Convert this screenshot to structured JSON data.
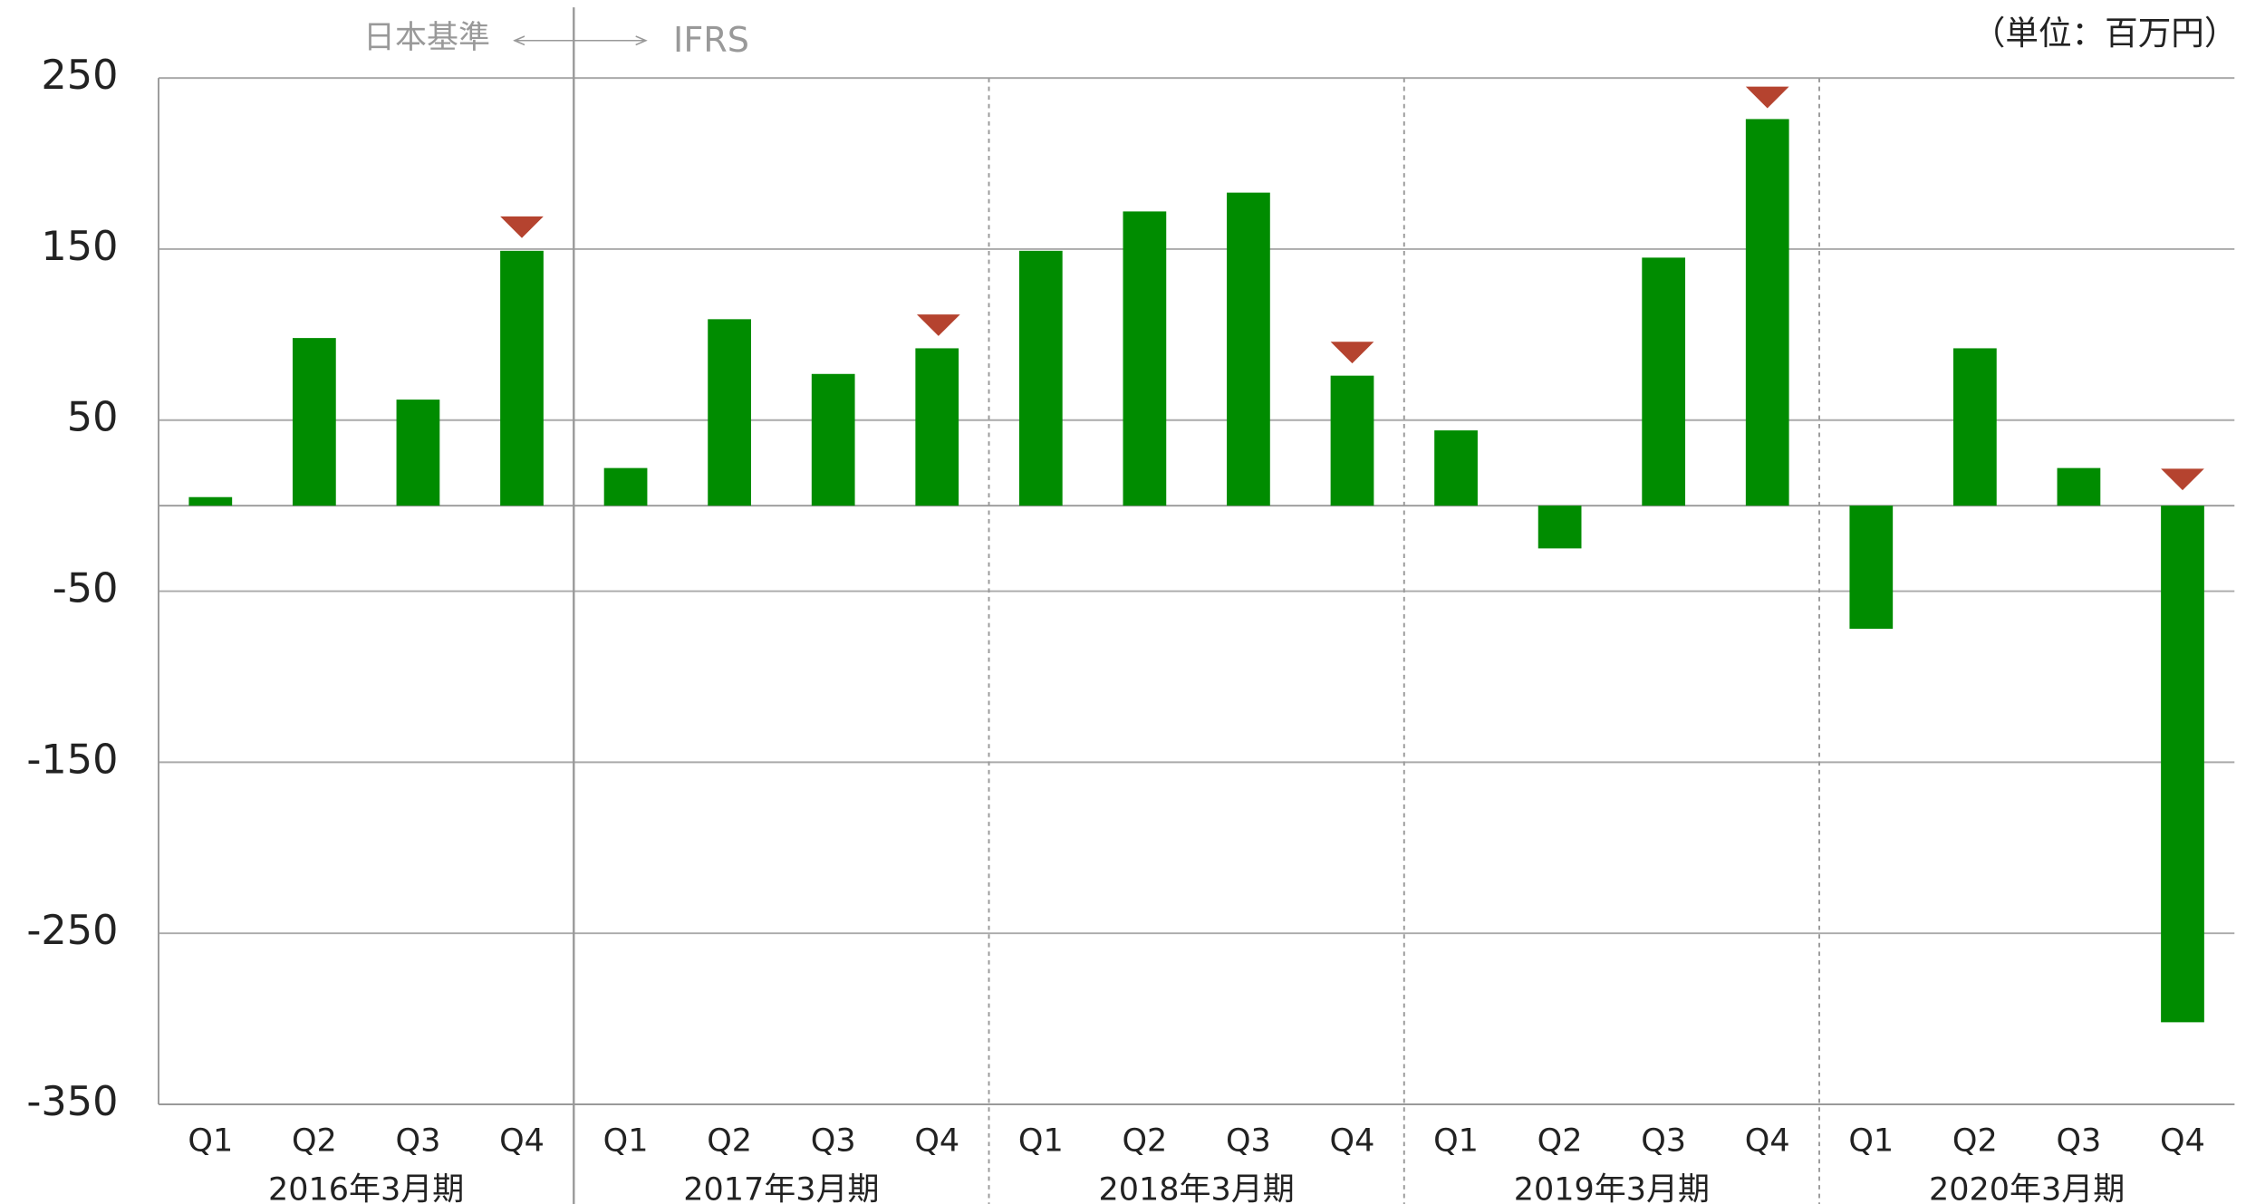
{
  "chart_data": {
    "type": "bar",
    "unit_label": "（単位：百万円）",
    "annotations": [
      "日本基準",
      "IFRS"
    ],
    "categories": [
      "Q1",
      "Q2",
      "Q3",
      "Q4",
      "Q1",
      "Q2",
      "Q3",
      "Q4",
      "Q1",
      "Q2",
      "Q3",
      "Q4",
      "Q1",
      "Q2",
      "Q3",
      "Q4",
      "Q1",
      "Q2",
      "Q3",
      "Q4"
    ],
    "groups": [
      "2016年3月期",
      "2017年3月期",
      "2018年3月期",
      "2019年3月期",
      "2020年3月期"
    ],
    "values": [
      5,
      98,
      62,
      149,
      22,
      109,
      77,
      92,
      149,
      172,
      183,
      76,
      44,
      -25,
      145,
      226,
      -72,
      92,
      22,
      -302
    ],
    "color": "#008c00",
    "ylim": [
      -350,
      250
    ],
    "yticks": [
      250,
      150,
      50,
      -50,
      -150,
      -250,
      -350
    ],
    "grid": true
  }
}
